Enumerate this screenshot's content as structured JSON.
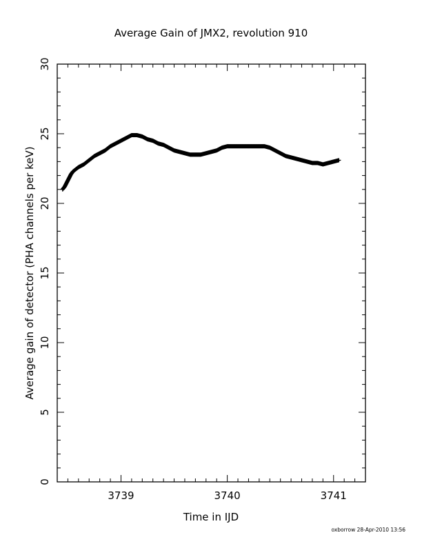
{
  "chart_data": {
    "type": "scatter",
    "title": "Average Gain of JMX2, revolution 910",
    "xlabel": "Time in IJD",
    "ylabel": "Average gain of detector (PHA channels per keV)",
    "xlim": [
      3738.4,
      3741.3
    ],
    "ylim": [
      0,
      30
    ],
    "x_ticks": [
      "3739",
      "3740",
      "3741"
    ],
    "y_ticks": [
      "0",
      "5",
      "10",
      "15",
      "20",
      "25",
      "30"
    ],
    "grid": false,
    "marker": "plus",
    "series": [
      {
        "x": [
          3738.45,
          3738.47,
          3738.49,
          3738.51,
          3738.53,
          3738.55,
          3738.6,
          3738.65,
          3738.7,
          3738.75,
          3738.8,
          3738.85,
          3738.9,
          3738.95,
          3739.0,
          3739.05,
          3739.1,
          3739.15,
          3739.2,
          3739.25,
          3739.3,
          3739.35,
          3739.4,
          3739.45,
          3739.5,
          3739.55,
          3739.6,
          3739.65,
          3739.7,
          3739.75,
          3739.8,
          3739.85,
          3739.9,
          3739.95,
          3740.0,
          3740.05,
          3740.1,
          3740.15,
          3740.2,
          3740.25,
          3740.3,
          3740.35,
          3740.4,
          3740.45,
          3740.5,
          3740.55,
          3740.6,
          3740.65,
          3740.7,
          3740.75,
          3740.8,
          3740.85,
          3740.9,
          3740.95,
          3741.0,
          3741.05
        ],
        "y": [
          21.0,
          21.2,
          21.5,
          21.8,
          22.1,
          22.3,
          22.6,
          22.8,
          23.1,
          23.4,
          23.6,
          23.8,
          24.1,
          24.3,
          24.5,
          24.7,
          24.9,
          24.9,
          24.8,
          24.6,
          24.5,
          24.3,
          24.2,
          24.0,
          23.8,
          23.7,
          23.6,
          23.5,
          23.5,
          23.5,
          23.6,
          23.7,
          23.8,
          24.0,
          24.1,
          24.1,
          24.1,
          24.1,
          24.1,
          24.1,
          24.1,
          24.1,
          24.0,
          23.8,
          23.6,
          23.4,
          23.3,
          23.2,
          23.1,
          23.0,
          22.9,
          22.9,
          22.8,
          22.9,
          23.0,
          23.1
        ]
      }
    ]
  },
  "footer": {
    "credit": "oxborrow 28-Apr-2010 13:56"
  }
}
